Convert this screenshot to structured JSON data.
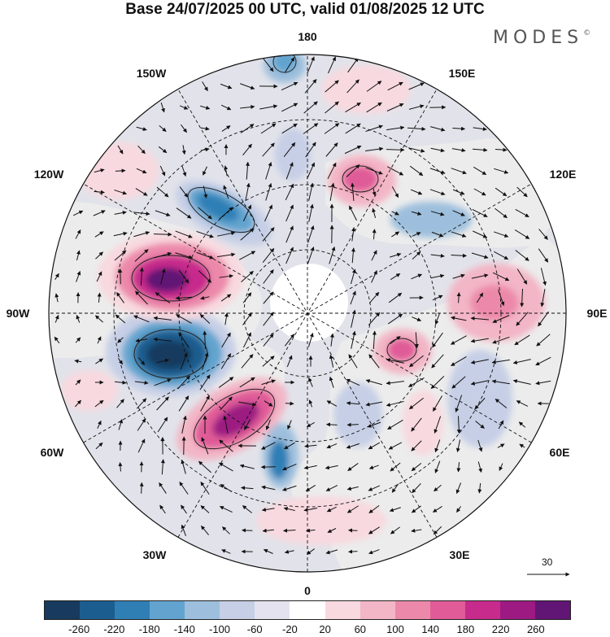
{
  "title": "Base 24/07/2025 00 UTC, valid 01/08/2025 12 UTC",
  "brand": "MODES",
  "brand_mark": "©",
  "longitude_labels": {
    "lon_180": "180",
    "lon_150e": "150E",
    "lon_120e": "120E",
    "lon_90e": "90E",
    "lon_60e": "60E",
    "lon_30e": "30E",
    "lon_0": "0",
    "lon_30w": "30W",
    "lon_60w": "60W",
    "lon_90w": "90W",
    "lon_120w": "120W",
    "lon_150w": "150W"
  },
  "vector_scale": {
    "label": "30"
  },
  "colorbar": {
    "colors": [
      "#173a5e",
      "#1c5d8f",
      "#2f7fb5",
      "#62a4cf",
      "#9dbfdd",
      "#c6cfe6",
      "#e5e2f0",
      "#ffffff",
      "#f8d9df",
      "#f3b6c6",
      "#ec89aa",
      "#e05b98",
      "#c72b8c",
      "#9c1a82",
      "#611574"
    ],
    "tick_labels": [
      "-260",
      "-220",
      "-180",
      "-140",
      "-100",
      "-60",
      "-20",
      "20",
      "60",
      "100",
      "140",
      "180",
      "220",
      "260"
    ]
  },
  "map": {
    "ocean_color": "#e2e3ea",
    "land_color": "#ececec",
    "polar_gap_color": "#ffffff"
  }
}
